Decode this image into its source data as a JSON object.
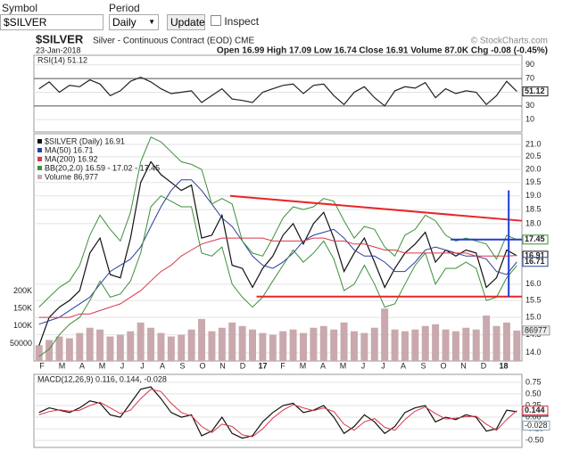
{
  "toolbar": {
    "symbol_label": "Symbol",
    "symbol_value": "$SILVER",
    "period_label": "Period",
    "period_value": "Daily",
    "update": "Update",
    "inspect": "Inspect"
  },
  "header": {
    "symbol": "$SILVER",
    "name": "Silver - Continuous Contract (EOD) CME",
    "copyright": "© StockCharts.com",
    "date": "23-Jan-2018",
    "quote": "Open 16.99 High 17.09 Low 16.74 Close 16.91 Volume 87.0K Chg -0.08 (-0.45%)"
  },
  "x_labels": [
    "F",
    "M",
    "A",
    "M",
    "J",
    "J",
    "A",
    "S",
    "O",
    "N",
    "D",
    "17",
    "F",
    "M",
    "A",
    "M",
    "J",
    "J",
    "A",
    "S",
    "O",
    "N",
    "D",
    "18"
  ],
  "chart_data": [
    {
      "type": "line",
      "title": "RSI(14) 51.12",
      "ylim": [
        -8,
        104
      ],
      "yticks": [
        90,
        70,
        50,
        30,
        10
      ],
      "bands": [
        70,
        30
      ],
      "series": [
        {
          "name": "RSI",
          "color": "#222222",
          "values": [
            55,
            65,
            50,
            60,
            58,
            68,
            62,
            45,
            52,
            66,
            72,
            65,
            55,
            48,
            50,
            52,
            35,
            45,
            55,
            40,
            38,
            35,
            50,
            55,
            60,
            62,
            48,
            60,
            62,
            45,
            32,
            50,
            58,
            42,
            30,
            52,
            58,
            56,
            64,
            42,
            55,
            48,
            52,
            50,
            32,
            45,
            66,
            51.12
          ]
        }
      ]
    },
    {
      "type": "line",
      "log_scale": true,
      "ylim": [
        13.78,
        21.44
      ],
      "yticks": [
        {
          "value": 21,
          "label": "21.0"
        },
        {
          "value": 20.5,
          "label": "20.5"
        },
        {
          "value": 20,
          "label": "20.0"
        },
        {
          "value": 19.5,
          "label": "19.5"
        },
        {
          "value": 19,
          "label": "19.0"
        },
        {
          "value": 18.5,
          "label": "18.5"
        },
        {
          "value": 18,
          "label": "18.0"
        },
        {
          "value": 16,
          "label": "16.0"
        },
        {
          "value": 15.5,
          "label": "15.5"
        },
        {
          "value": 15,
          "label": "15.0"
        },
        {
          "value": 14.5,
          "label": "14.5"
        },
        {
          "value": 14,
          "label": "14.0"
        }
      ],
      "volume_lim": [
        0,
        650000
      ],
      "volume_ticks": [
        {
          "value": 200000,
          "label": "200K"
        },
        {
          "value": 150000,
          "label": "150K"
        },
        {
          "value": 100000,
          "label": "100K"
        },
        50000
      ],
      "series": [
        {
          "name": "$SILVER (Daily) 16.91",
          "color": "#111111",
          "values": [
            14.2,
            15.0,
            15.3,
            15.5,
            15.8,
            17.0,
            17.5,
            16.3,
            16.2,
            17.5,
            19.5,
            20.3,
            19.8,
            19.5,
            19.2,
            19.4,
            17.5,
            17.6,
            18.3,
            16.6,
            16.5,
            15.9,
            16.5,
            16.9,
            17.6,
            18.0,
            17.3,
            18.0,
            18.4,
            17.5,
            16.4,
            17.0,
            17.5,
            16.7,
            15.9,
            16.5,
            17.0,
            17.3,
            17.7,
            16.7,
            17.1,
            16.9,
            17.1,
            17.0,
            15.9,
            16.2,
            17.1,
            16.91
          ]
        },
        {
          "name": "MA(50) 16.71",
          "color": "#2b3d9c",
          "values": [
            14.8,
            14.9,
            15.0,
            15.2,
            15.4,
            15.6,
            16.0,
            16.4,
            16.6,
            16.8,
            17.2,
            17.9,
            18.6,
            19.2,
            19.6,
            19.6,
            19.2,
            18.7,
            18.2,
            17.9,
            17.4,
            16.9,
            16.6,
            16.5,
            16.7,
            17.0,
            17.4,
            17.6,
            17.7,
            17.8,
            17.5,
            17.1,
            16.9,
            16.9,
            16.7,
            16.4,
            16.4,
            16.7,
            17.1,
            17.2,
            17.1,
            17.0,
            16.9,
            16.9,
            16.8,
            16.4,
            16.3,
            16.71
          ]
        },
        {
          "name": "MA(200) 16.92",
          "color": "#d9364a",
          "values": [
            15.0,
            15.0,
            15.0,
            15.0,
            15.1,
            15.1,
            15.2,
            15.3,
            15.4,
            15.6,
            15.8,
            16.1,
            16.4,
            16.6,
            16.9,
            17.1,
            17.3,
            17.4,
            17.5,
            17.5,
            17.5,
            17.5,
            17.5,
            17.4,
            17.4,
            17.4,
            17.4,
            17.5,
            17.5,
            17.4,
            17.4,
            17.3,
            17.3,
            17.2,
            17.1,
            17.1,
            17.0,
            17.0,
            17.0,
            17.0,
            17.0,
            17.0,
            17.0,
            16.9,
            16.9,
            16.9,
            16.9,
            16.92
          ]
        },
        {
          "name": "BB(20,2.0) 16.59 - 17.02 - 17.45",
          "color": "#3f8f3a",
          "values": [
            15.3,
            15.6,
            15.9,
            16.1,
            16.6,
            17.6,
            18.3,
            17.8,
            17.4,
            18.4,
            20.3,
            21.3,
            21.1,
            20.7,
            20.3,
            20.2,
            20.0,
            18.7,
            18.9,
            18.7,
            17.4,
            17.0,
            16.9,
            17.5,
            18.2,
            18.6,
            18.5,
            18.6,
            18.9,
            18.8,
            18.1,
            17.5,
            17.9,
            17.8,
            17.2,
            16.9,
            17.6,
            17.8,
            18.3,
            18.1,
            17.6,
            17.4,
            17.5,
            17.4,
            17.3,
            16.8,
            17.6,
            17.45
          ],
          "lower": [
            13.9,
            14.1,
            14.5,
            14.8,
            15.0,
            15.5,
            16.1,
            15.6,
            15.7,
            16.1,
            17.0,
            18.6,
            19.0,
            18.8,
            18.6,
            18.6,
            17.0,
            16.9,
            17.2,
            16.0,
            15.6,
            15.3,
            15.6,
            16.1,
            16.6,
            17.1,
            16.7,
            17.0,
            17.4,
            16.8,
            15.8,
            16.0,
            16.6,
            16.0,
            15.3,
            15.4,
            16.0,
            16.6,
            17.0,
            16.0,
            16.5,
            16.5,
            16.7,
            16.5,
            15.5,
            15.6,
            16.2,
            16.59
          ]
        },
        {
          "name": "Volume 86,977",
          "color": "#c9a9ad",
          "axis": "volume",
          "values": [
            45000,
            60000,
            70000,
            65000,
            80000,
            95000,
            90000,
            70000,
            75000,
            85000,
            110000,
            95000,
            80000,
            70000,
            75000,
            90000,
            120000,
            85000,
            95000,
            110000,
            100000,
            90000,
            80000,
            75000,
            85000,
            90000,
            80000,
            95000,
            100000,
            90000,
            110000,
            85000,
            80000,
            95000,
            150000,
            90000,
            85000,
            90000,
            100000,
            105000,
            90000,
            85000,
            95000,
            90000,
            130000,
            100000,
            110000,
            86977
          ]
        }
      ],
      "trendlines": [
        {
          "color": "#e8262a",
          "start": [
            18.8,
            19.0
          ],
          "end": [
            47.5,
            18.1
          ]
        },
        {
          "color": "#e8262a",
          "start": [
            21.4,
            15.62
          ],
          "end": [
            47.5,
            15.62
          ]
        },
        {
          "color": "#1f3fd1",
          "start": [
            40.5,
            17.45
          ],
          "end": [
            47.5,
            17.45
          ]
        },
        {
          "color": "#1f3fd1",
          "start": [
            46.2,
            15.6
          ],
          "end": [
            46.2,
            19.2
          ]
        }
      ]
    },
    {
      "type": "line",
      "title": "MACD(12,26,9) 0.116, 0.144, -0.028",
      "ylim": [
        -0.65,
        0.92
      ],
      "yticks": [
        {
          "value": 0.75,
          "label": "0.75"
        },
        {
          "value": 0.5,
          "label": "0.50"
        },
        {
          "value": 0.25,
          "label": "0.25"
        },
        {
          "value": 0,
          "label": "0.00"
        },
        {
          "value": -0.25,
          "label": "-0.25"
        },
        {
          "value": -0.5,
          "label": "-0.50"
        }
      ],
      "histogram_last": -0.028,
      "series": [
        {
          "name": "MACD",
          "color": "#111111",
          "values": [
            0.1,
            0.2,
            0.15,
            0.1,
            0.2,
            0.35,
            0.3,
            0.05,
            0.0,
            0.3,
            0.6,
            0.65,
            0.4,
            0.1,
            0.0,
            0.05,
            -0.4,
            -0.3,
            0.0,
            -0.35,
            -0.45,
            -0.4,
            -0.1,
            0.1,
            0.25,
            0.3,
            0.1,
            0.15,
            0.25,
            0.0,
            -0.35,
            -0.2,
            0.05,
            -0.1,
            -0.35,
            -0.2,
            0.1,
            0.2,
            0.25,
            -0.1,
            0.0,
            -0.05,
            0.05,
            0.0,
            -0.3,
            -0.25,
            0.15,
            0.116
          ]
        },
        {
          "name": "Signal",
          "color": "#d9364a",
          "values": [
            0.05,
            0.12,
            0.16,
            0.13,
            0.15,
            0.25,
            0.32,
            0.2,
            0.08,
            0.15,
            0.4,
            0.6,
            0.55,
            0.3,
            0.1,
            0.03,
            -0.2,
            -0.33,
            -0.15,
            -0.2,
            -0.38,
            -0.42,
            -0.25,
            -0.02,
            0.15,
            0.27,
            0.2,
            0.14,
            0.2,
            0.12,
            -0.15,
            -0.28,
            -0.1,
            -0.03,
            -0.22,
            -0.28,
            -0.05,
            0.13,
            0.22,
            0.08,
            -0.04,
            -0.02,
            0.01,
            0.02,
            -0.15,
            -0.28,
            -0.05,
            0.144
          ]
        }
      ]
    }
  ]
}
